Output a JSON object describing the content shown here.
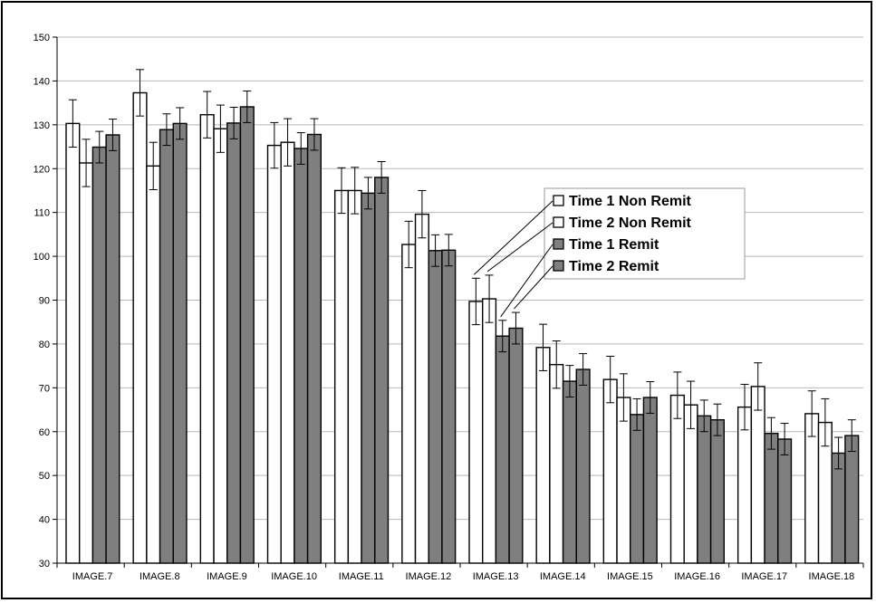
{
  "chart_data": {
    "type": "bar",
    "title": "",
    "xlabel": "",
    "ylabel": "",
    "ylim": [
      30,
      150
    ],
    "yticks": [
      30,
      40,
      50,
      60,
      70,
      80,
      90,
      100,
      110,
      120,
      130,
      140,
      150
    ],
    "grid": true,
    "legend_position": "middle-right",
    "categories": [
      "IMAGE.7",
      "IMAGE.8",
      "IMAGE.9",
      "IMAGE.10",
      "IMAGE.11",
      "IMAGE.12",
      "IMAGE.13",
      "IMAGE.14",
      "IMAGE.15",
      "IMAGE.16",
      "IMAGE.17",
      "IMAGE.18"
    ],
    "series": [
      {
        "name": "Time 1 Non Remit",
        "color": "#ffffff",
        "values": [
          130.3,
          137.3,
          132.3,
          125.3,
          115.0,
          102.7,
          89.7,
          79.2,
          71.9,
          68.3,
          65.6,
          64.1
        ],
        "error": [
          5.4,
          5.3,
          5.3,
          5.2,
          5.2,
          5.3,
          5.3,
          5.3,
          5.3,
          5.3,
          5.2,
          5.2
        ]
      },
      {
        "name": "Time 2 Non Remit",
        "color": "#ffffff",
        "values": [
          121.3,
          120.6,
          129.1,
          126.0,
          115.0,
          109.6,
          90.3,
          75.3,
          67.8,
          66.1,
          70.3,
          62.1
        ],
        "error": [
          5.4,
          5.4,
          5.4,
          5.4,
          5.3,
          5.4,
          5.4,
          5.4,
          5.4,
          5.4,
          5.4,
          5.4
        ]
      },
      {
        "name": "Time 1 Remit",
        "color": "#7f7f7f",
        "values": [
          124.9,
          128.9,
          130.4,
          124.6,
          114.4,
          101.3,
          81.8,
          71.5,
          63.9,
          63.6,
          59.6,
          55.1
        ],
        "error": [
          3.6,
          3.6,
          3.6,
          3.6,
          3.6,
          3.6,
          3.6,
          3.6,
          3.6,
          3.6,
          3.6,
          3.6
        ]
      },
      {
        "name": "Time 2 Remit",
        "color": "#7f7f7f",
        "values": [
          127.7,
          130.3,
          134.1,
          127.8,
          118.0,
          101.4,
          83.6,
          74.2,
          67.8,
          62.7,
          58.3,
          59.1
        ],
        "error": [
          3.6,
          3.6,
          3.6,
          3.6,
          3.6,
          3.6,
          3.6,
          3.6,
          3.6,
          3.6,
          3.6,
          3.6
        ]
      }
    ]
  }
}
